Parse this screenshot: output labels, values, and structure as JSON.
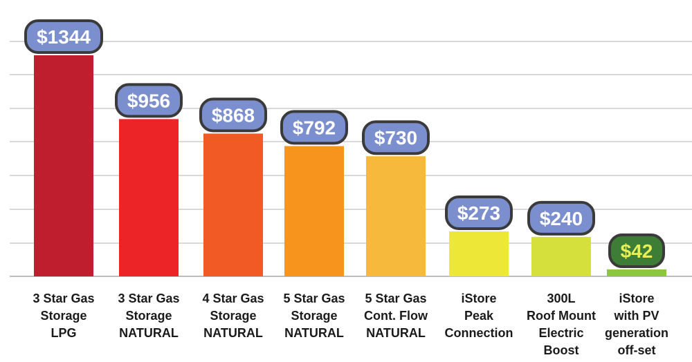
{
  "chart_data": {
    "type": "bar",
    "categories": [
      [
        "3 Star Gas",
        "Storage",
        "LPG"
      ],
      [
        "3 Star Gas",
        "Storage",
        "NATURAL"
      ],
      [
        "4 Star Gas",
        "Storage",
        "NATURAL"
      ],
      [
        "5 Star Gas",
        "Storage",
        "NATURAL"
      ],
      [
        "5 Star Gas",
        "Cont. Flow",
        "NATURAL"
      ],
      [
        "iStore",
        "Peak",
        "Connection"
      ],
      [
        "300L",
        "Roof Mount",
        "Electric",
        "Boost"
      ],
      [
        "iStore",
        "with PV",
        "generation",
        "off-set"
      ]
    ],
    "values": [
      1344,
      956,
      868,
      792,
      730,
      273,
      240,
      42
    ],
    "data_labels": [
      "$1344",
      "$956",
      "$868",
      "$792",
      "$730",
      "$273",
      "$240",
      "$42"
    ],
    "bar_colors": [
      "#be1e2d",
      "#ec2327",
      "#f15a24",
      "#f7941d",
      "#f6b93b",
      "#ede838",
      "#d6e03d",
      "#8dc63f"
    ],
    "label_fill": [
      "#7b8fcf",
      "#7b8fcf",
      "#7b8fcf",
      "#7b8fcf",
      "#7b8fcf",
      "#7b8fcf",
      "#7b8fcf",
      "#3e7d35"
    ],
    "label_text_color": [
      "#ffffff",
      "#ffffff",
      "#ffffff",
      "#ffffff",
      "#ffffff",
      "#ffffff",
      "#ffffff",
      "#e6ef5a"
    ],
    "label_border": "#3a3a3a",
    "gridline_color": "#cccccc",
    "ylim": [
      0,
      1360
    ],
    "grid": true,
    "title": "",
    "xlabel": "",
    "ylabel": ""
  }
}
